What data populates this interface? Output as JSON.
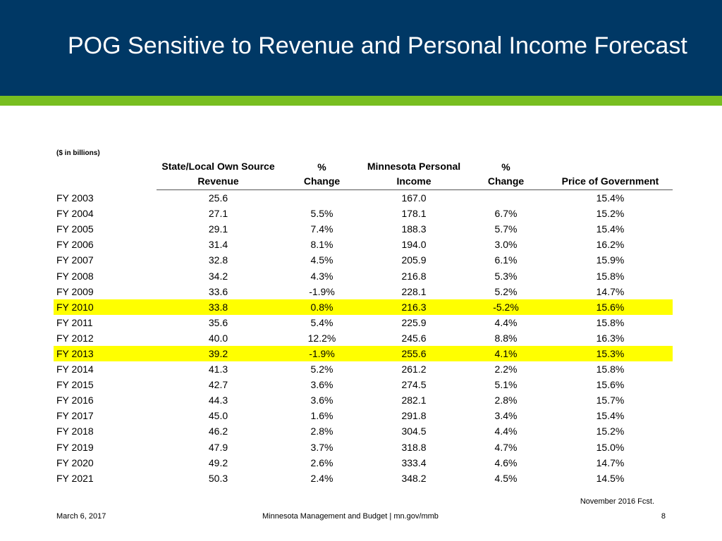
{
  "slide": {
    "title": "POG Sensitive to Revenue and Personal Income Forecast",
    "units_note": "($ in billions)",
    "source_note": "November 2016 Fcst.",
    "colors": {
      "header_bg": "#003865",
      "accent_band": "#78be20",
      "highlight": "#ffff00"
    }
  },
  "table": {
    "headers": {
      "revenue_line1": "State/Local Own Source",
      "revenue_line2": "Revenue",
      "rev_change_line1": "%",
      "rev_change_line2": "Change",
      "income_line1": "Minnesota Personal",
      "income_line2": "Income",
      "inc_change_line1": "%",
      "inc_change_line2": "Change",
      "pog": "Price of Government"
    },
    "rows": [
      {
        "year": "FY 2003",
        "revenue": "25.6",
        "rev_change": "",
        "income": "167.0",
        "inc_change": "",
        "pog": "15.4%",
        "highlight": false
      },
      {
        "year": "FY 2004",
        "revenue": "27.1",
        "rev_change": "5.5%",
        "income": "178.1",
        "inc_change": "6.7%",
        "pog": "15.2%",
        "highlight": false
      },
      {
        "year": "FY 2005",
        "revenue": "29.1",
        "rev_change": "7.4%",
        "income": "188.3",
        "inc_change": "5.7%",
        "pog": "15.4%",
        "highlight": false
      },
      {
        "year": "FY 2006",
        "revenue": "31.4",
        "rev_change": "8.1%",
        "income": "194.0",
        "inc_change": "3.0%",
        "pog": "16.2%",
        "highlight": false
      },
      {
        "year": "FY 2007",
        "revenue": "32.8",
        "rev_change": "4.5%",
        "income": "205.9",
        "inc_change": "6.1%",
        "pog": "15.9%",
        "highlight": false
      },
      {
        "year": "FY 2008",
        "revenue": "34.2",
        "rev_change": "4.3%",
        "income": "216.8",
        "inc_change": "5.3%",
        "pog": "15.8%",
        "highlight": false
      },
      {
        "year": "FY 2009",
        "revenue": "33.6",
        "rev_change": "-1.9%",
        "income": "228.1",
        "inc_change": "5.2%",
        "pog": "14.7%",
        "highlight": false
      },
      {
        "year": "FY 2010",
        "revenue": "33.8",
        "rev_change": "0.8%",
        "income": "216.3",
        "inc_change": "-5.2%",
        "pog": "15.6%",
        "highlight": true
      },
      {
        "year": "FY 2011",
        "revenue": "35.6",
        "rev_change": "5.4%",
        "income": "225.9",
        "inc_change": "4.4%",
        "pog": "15.8%",
        "highlight": false
      },
      {
        "year": "FY 2012",
        "revenue": "40.0",
        "rev_change": "12.2%",
        "income": "245.6",
        "inc_change": "8.8%",
        "pog": "16.3%",
        "highlight": false
      },
      {
        "year": "FY 2013",
        "revenue": "39.2",
        "rev_change": "-1.9%",
        "income": "255.6",
        "inc_change": "4.1%",
        "pog": "15.3%",
        "highlight": true
      },
      {
        "year": "FY 2014",
        "revenue": "41.3",
        "rev_change": "5.2%",
        "income": "261.2",
        "inc_change": "2.2%",
        "pog": "15.8%",
        "highlight": false
      },
      {
        "year": "FY 2015",
        "revenue": "42.7",
        "rev_change": "3.6%",
        "income": "274.5",
        "inc_change": "5.1%",
        "pog": "15.6%",
        "highlight": false
      },
      {
        "year": "FY 2016",
        "revenue": "44.3",
        "rev_change": "3.6%",
        "income": "282.1",
        "inc_change": "2.8%",
        "pog": "15.7%",
        "highlight": false
      },
      {
        "year": "FY 2017",
        "revenue": "45.0",
        "rev_change": "1.6%",
        "income": "291.8",
        "inc_change": "3.4%",
        "pog": "15.4%",
        "highlight": false
      },
      {
        "year": "FY 2018",
        "revenue": "46.2",
        "rev_change": "2.8%",
        "income": "304.5",
        "inc_change": "4.4%",
        "pog": "15.2%",
        "highlight": false
      },
      {
        "year": "FY 2019",
        "revenue": "47.9",
        "rev_change": "3.7%",
        "income": "318.8",
        "inc_change": "4.7%",
        "pog": "15.0%",
        "highlight": false
      },
      {
        "year": "FY 2020",
        "revenue": "49.2",
        "rev_change": "2.6%",
        "income": "333.4",
        "inc_change": "4.6%",
        "pog": "14.7%",
        "highlight": false
      },
      {
        "year": "FY 2021",
        "revenue": "50.3",
        "rev_change": "2.4%",
        "income": "348.2",
        "inc_change": "4.5%",
        "pog": "14.5%",
        "highlight": false
      }
    ]
  },
  "footer": {
    "date": "March 6, 2017",
    "center": "Minnesota Management and Budget  |  mn.gov/mmb",
    "page_number": "8"
  }
}
